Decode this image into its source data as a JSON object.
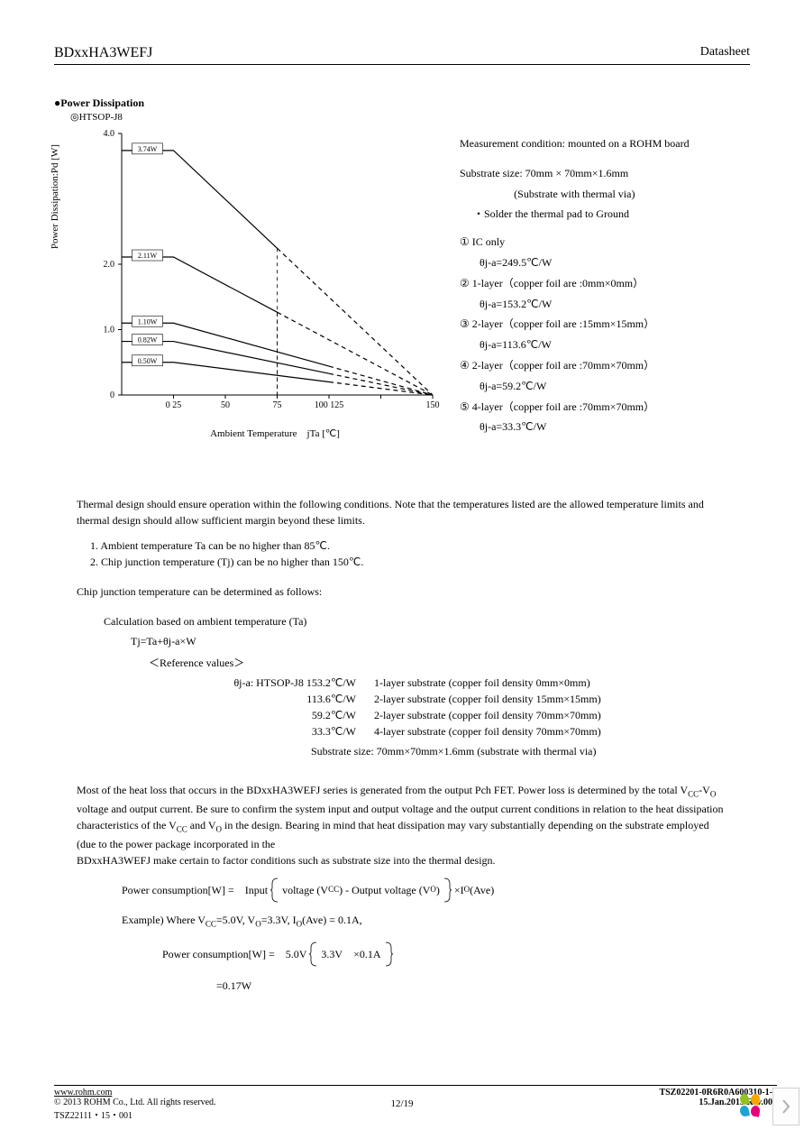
{
  "header": {
    "part_number": "BDxxHA3WEFJ",
    "doc_type": "Datasheet"
  },
  "section": {
    "title": "●Power Dissipation",
    "package": "◎HTSOP-J8"
  },
  "chart": {
    "type": "line",
    "y_label": "Power Dissipation:Pd [W]",
    "x_label": "Ambient Temperature jTa [℃]",
    "background_color": "#ffffff",
    "axis_color": "#000000",
    "curve_color": "#000000",
    "line_width": 1.2,
    "xlim": [
      0,
      150
    ],
    "ylim": [
      0,
      4.0
    ],
    "x_ticks": [
      25,
      50,
      75,
      100,
      125,
      150
    ],
    "x_tick_labels": [
      "0 25",
      "50",
      "75",
      "100 125",
      "",
      "150"
    ],
    "y_ticks": [
      0,
      1.0,
      2.0,
      4.0
    ],
    "y_tick_labels": [
      "0",
      "1.0",
      "2.0",
      "4.0"
    ],
    "curves": [
      {
        "label": "3.74W",
        "pd": 3.74,
        "break_x": 25,
        "solid_end_x": 75,
        "dashed_end_pd_at_150": 0
      },
      {
        "label": "2.11W",
        "pd": 2.11,
        "break_x": 25,
        "solid_end_x": 75,
        "dashed_end_pd_at_150": 0
      },
      {
        "label": "1.10W",
        "pd": 1.1,
        "break_x": 25,
        "solid_end_x": 100,
        "dashed_end_pd_at_150": 0
      },
      {
        "label": "0.82W",
        "pd": 0.82,
        "break_x": 25,
        "solid_end_x": 100,
        "dashed_end_pd_at_150": 0
      },
      {
        "label": "0.50W",
        "pd": 0.5,
        "break_x": 25,
        "solid_end_x": 100,
        "dashed_end_pd_at_150": 0
      }
    ]
  },
  "notes": {
    "measurement": "Measurement condition: mounted on a ROHM board",
    "substrate_size": "Substrate size: 70mm × 70mm×1.6mm",
    "substrate_via": "(Substrate with thermal via)",
    "solder": "・Solder the thermal pad to Ground",
    "items": [
      {
        "num": "①",
        "line1": "IC only",
        "line2": "θj-a=249.5℃/W"
      },
      {
        "num": "②",
        "line1": "1-layer（copper foil are :0mm×0mm）",
        "line2": "θj-a=153.2℃/W"
      },
      {
        "num": "③",
        "line1": "2-layer（copper foil are :15mm×15mm）",
        "line2": "θj-a=113.6℃/W"
      },
      {
        "num": "④",
        "line1": "2-layer（copper foil are :70mm×70mm）",
        "line2": "θj-a=59.2℃/W"
      },
      {
        "num": "⑤",
        "line1": "4-layer（copper foil are :70mm×70mm）",
        "line2": "θj-a=33.3℃/W"
      }
    ]
  },
  "body": {
    "p1": "Thermal design should ensure operation within the following conditions. Note that the temperatures listed are the allowed temperature limits and thermal design should allow sufficient margin beyond these limits.",
    "cond1": "1. Ambient temperature Ta can be no higher than 85℃.",
    "cond2": "2. Chip junction temperature (Tj) can be no higher than 150℃.",
    "p2": "Chip junction temperature can be determined as follows:",
    "calc_title": "Calculation based on ambient temperature (Ta)",
    "calc_eq": "Tj=Ta+θj-a×W",
    "ref_title": "＜Reference values＞",
    "refs": [
      {
        "left": "θj-a: HTSOP-J8 153.2℃/W",
        "right": "1-layer substrate (copper foil density 0mm×0mm)"
      },
      {
        "left": "113.6℃/W",
        "right": "2-layer substrate (copper foil density 15mm×15mm)"
      },
      {
        "left": "59.2℃/W",
        "right": "2-layer substrate (copper foil density 70mm×70mm)"
      },
      {
        "left": "33.3℃/W",
        "right": "4-layer substrate (copper foil density 70mm×70mm)"
      }
    ],
    "ref_sub": "Substrate size: 70mm×70mm×1.6mm (substrate with thermal via)",
    "p3a": "Most of the heat loss that occurs in the BDxxHA3WEFJ series is generated from the output Pch FET. Power loss is determined by the total V",
    "p3a_sub1": "CC",
    "p3b": "-V",
    "p3b_sub": "O",
    "p3c": " voltage and output current. Be sure to confirm the system input and output voltage and the output current conditions in relation to the heat dissipation characteristics of the V",
    "p3c_sub1": "CC",
    "p3d": " and V",
    "p3d_sub": "O",
    "p3e": " in the design. Bearing in mind that heat dissipation may vary substantially depending on the substrate employed (due to the power package incorporated in the",
    "p3f": "BDxxHA3WEFJ make certain to factor conditions such as substrate size into the thermal design.",
    "eq1_label": "Power consumption[W] = Input",
    "eq1_mid1": "voltage (V",
    "eq1_sub1": "CC",
    "eq1_mid2": ") - Output voltage (V",
    "eq1_sub2": "O",
    "eq1_mid3": ")",
    "eq1_tail": "×I",
    "eq1_sub3": "O",
    "eq1_tail2": "(Ave)",
    "example_label": "Example) Where V",
    "ex_sub1": "CC",
    "ex_mid1": "=5.0V, V",
    "ex_sub2": "O",
    "ex_mid2": "=3.3V, I",
    "ex_sub3": "O",
    "ex_mid3": "(Ave) = 0.1A,",
    "eq2_label": "Power consumption[W] = 5.0V",
    "eq2_mid": "3.3V ×0.1A",
    "eq2_result": "=0.17W"
  },
  "footer": {
    "url": "www.rohm.com",
    "copyright": "© 2013 ROHM Co., Ltd. All rights reserved.",
    "tsz_small": "TSZ22111・15・001",
    "page": "12/19",
    "doc_code": "TSZ02201-0R6R0A600310-1-2",
    "date_rev": "15.Jan.2013 Rev.002"
  },
  "colors": {
    "logo_g": "#95c11f",
    "logo_y": "#f7a600",
    "logo_b": "#1fa2d4",
    "logo_p": "#e6007e",
    "chevron": "#b0b0b0"
  }
}
